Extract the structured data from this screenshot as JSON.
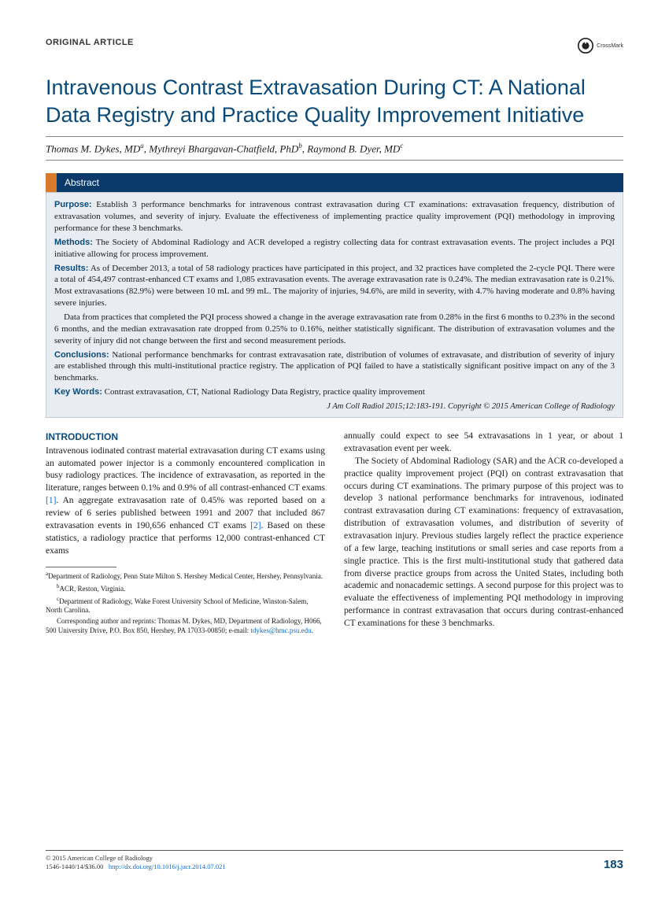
{
  "colors": {
    "brand_blue": "#0a4a7a",
    "dark_blue": "#0a3a6a",
    "orange_accent": "#d97a2a",
    "abstract_bg": "#e9edf3",
    "abstract_border": "#c5cdd8",
    "link_blue": "#0a6ad0",
    "text": "#1a1a1a"
  },
  "header": {
    "article_type": "ORIGINAL ARTICLE",
    "crossmark": "CrossMark"
  },
  "title": "Intravenous Contrast Extravasation During CT: A National Data Registry and Practice Quality Improvement Initiative",
  "authors_html": "Thomas M. Dykes, MD<sup>a</sup>, Mythreyi Bhargavan-Chatfield, PhD<sup>b</sup>, Raymond B. Dyer, MD<sup>c</sup>",
  "abstract": {
    "header": "Abstract",
    "purpose_label": "Purpose:",
    "purpose": "Establish 3 performance benchmarks for intravenous contrast extravasation during CT examinations: extravasation frequency, distribution of extravasation volumes, and severity of injury. Evaluate the effectiveness of implementing practice quality improvement (PQI) methodology in improving performance for these 3 benchmarks.",
    "methods_label": "Methods:",
    "methods": "The Society of Abdominal Radiology and ACR developed a registry collecting data for contrast extravasation events. The project includes a PQI initiative allowing for process improvement.",
    "results_label": "Results:",
    "results1": "As of December 2013, a total of 58 radiology practices have participated in this project, and 32 practices have completed the 2-cycle PQI. There were a total of 454,497 contrast-enhanced CT exams and 1,085 extravasation events. The average extravasation rate is 0.24%. The median extravasation rate is 0.21%. Most extravasations (82.9%) were between 10 mL and 99 mL. The majority of injuries, 94.6%, are mild in severity, with 4.7% having moderate and 0.8% having severe injuries.",
    "results2": "Data from practices that completed the PQI process showed a change in the average extravasation rate from 0.28% in the first 6 months to 0.23% in the second 6 months, and the median extravasation rate dropped from 0.25% to 0.16%, neither statistically significant. The distribution of extravasation volumes and the severity of injury did not change between the first and second measurement periods.",
    "conclusions_label": "Conclusions:",
    "conclusions": "National performance benchmarks for contrast extravasation rate, distribution of volumes of extravasate, and distribution of severity of injury are established through this multi-institutional practice registry. The application of PQI failed to have a statistically significant positive impact on any of the 3 benchmarks.",
    "keywords_label": "Key Words:",
    "keywords": "Contrast extravasation, CT, National Radiology Data Registry, practice quality improvement",
    "citation": "J Am Coll Radiol 2015;12:183-191. Copyright © 2015 American College of Radiology"
  },
  "body": {
    "intro_head": "INTRODUCTION",
    "left_p1a": "Intravenous iodinated contrast material extravasation during CT exams using an automated power injector is a commonly encountered complication in busy radiology practices. The incidence of extravasation, as reported in the literature, ranges between 0.1% and 0.9% of all contrast-enhanced CT exams ",
    "ref1": "[1]",
    "left_p1b": ". An aggregate extravasation rate of 0.45% was reported based on a review of 6 series published between 1991 and 2007 that included 867 extravasation events in 190,656 enhanced CT exams ",
    "ref2": "[2]",
    "left_p1c": ". Based on these statistics, a radiology practice that performs 12,000 contrast-enhanced CT exams",
    "right_p1": "annually could expect to see 54 extravasations in 1 year, or about 1 extravasation event per week.",
    "right_p2": "The Society of Abdominal Radiology (SAR) and the ACR co-developed a practice quality improvement project (PQI) on contrast extravasation that occurs during CT examinations. The primary purpose of this project was to develop 3 national performance benchmarks for intravenous, iodinated contrast extravasation during CT examinations: frequency of extravasation, distribution of extravasation volumes, and distribution of severity of extravasation injury. Previous studies largely reflect the practice experience of a few large, teaching institutions or small series and case reports from a single practice. This is the first multi-institutional study that gathered data from diverse practice groups from across the United States, including both academic and nonacademic settings. A second purpose for this project was to evaluate the effectiveness of implementing PQI methodology in improving performance in contrast extravasation that occurs during contrast-enhanced CT examinations for these 3 benchmarks."
  },
  "affiliations": {
    "a": "Department of Radiology, Penn State Milton S. Hershey Medical Center, Hershey, Pennsylvania.",
    "b": "ACR, Reston, Virginia.",
    "c": "Department of Radiology, Wake Forest University School of Medicine, Winston-Salem, North Carolina.",
    "corr": "Corresponding author and reprints: Thomas M. Dykes, MD, Department of Radiology, H066, 500 University Drive, P.O. Box 850, Hershey, PA 17033-00850; e-mail: ",
    "email": "tdykes@hmc.psu.edu",
    "period": "."
  },
  "footer": {
    "copyright": "© 2015 American College of Radiology",
    "issn": "1546-1440/14/$36.00",
    "doi": "http://dx.doi.org/10.1016/j.jacr.2014.07.021",
    "page": "183"
  }
}
